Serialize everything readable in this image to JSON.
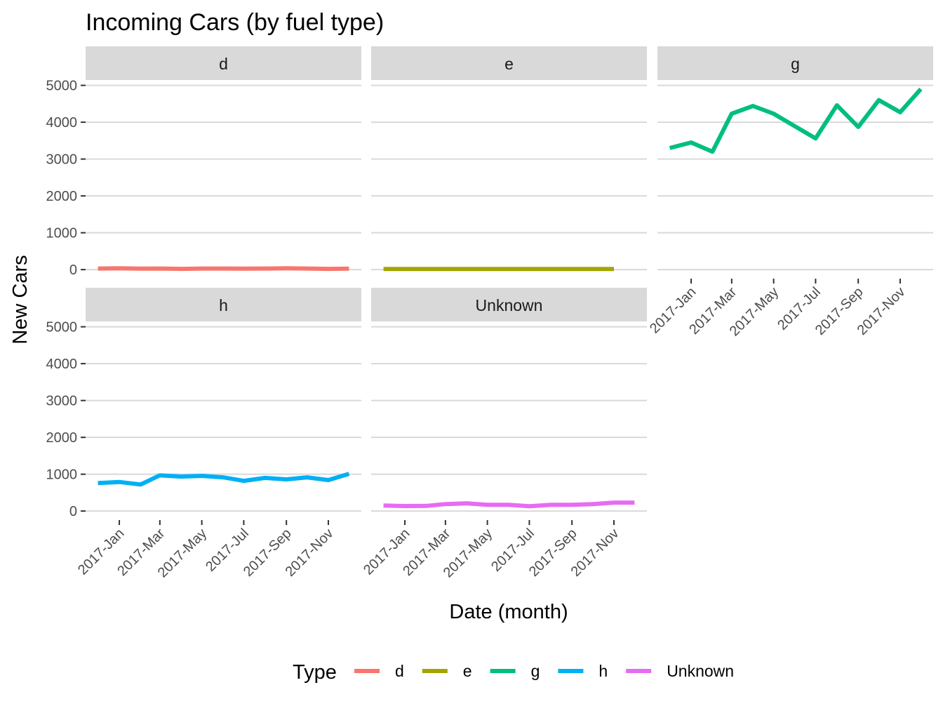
{
  "chart_data": {
    "type": "line",
    "title": "Incoming Cars (by fuel type)",
    "x_label": "Date (month)",
    "y_label": "New Cars",
    "legend_title": "Type",
    "legend_position": "bottom",
    "grid": true,
    "x": [
      "2016-12",
      "2017-01",
      "2017-02",
      "2017-03",
      "2017-04",
      "2017-05",
      "2017-06",
      "2017-07",
      "2017-08",
      "2017-09",
      "2017-10",
      "2017-11",
      "2017-12"
    ],
    "xlim": [
      "2016-11-13",
      "2017-12-19"
    ],
    "xticks": [
      {
        "value": "2017-01",
        "label": "2017-Jan"
      },
      {
        "value": "2017-03",
        "label": "2017-Mar"
      },
      {
        "value": "2017-05",
        "label": "2017-May"
      },
      {
        "value": "2017-07",
        "label": "2017-Jul"
      },
      {
        "value": "2017-09",
        "label": "2017-Sep"
      },
      {
        "value": "2017-11",
        "label": "2017-Nov"
      }
    ],
    "ylim": [
      -245,
      5145
    ],
    "yticks": [
      0,
      1000,
      2000,
      3000,
      4000,
      5000
    ],
    "series": [
      {
        "name": "d",
        "color": "#F8766D",
        "values": [
          30,
          35,
          25,
          30,
          20,
          30,
          30,
          25,
          30,
          35,
          30,
          20,
          25
        ]
      },
      {
        "name": "e",
        "color": "#A3A500",
        "values": [
          15,
          15,
          15,
          15,
          15,
          15,
          15,
          15,
          15,
          15,
          15,
          15,
          null
        ]
      },
      {
        "name": "g",
        "color": "#00BF7D",
        "values": [
          3300,
          3450,
          3200,
          4230,
          4440,
          4230,
          3890,
          3560,
          4460,
          3870,
          4600,
          4270,
          4900
        ]
      },
      {
        "name": "h",
        "color": "#00B0F6",
        "values": [
          760,
          790,
          720,
          970,
          935,
          955,
          915,
          820,
          900,
          860,
          915,
          840,
          1010
        ]
      },
      {
        "name": "Unknown",
        "color": "#E76BF3",
        "values": [
          150,
          135,
          140,
          190,
          210,
          170,
          170,
          130,
          170,
          170,
          190,
          230,
          230
        ]
      }
    ]
  }
}
